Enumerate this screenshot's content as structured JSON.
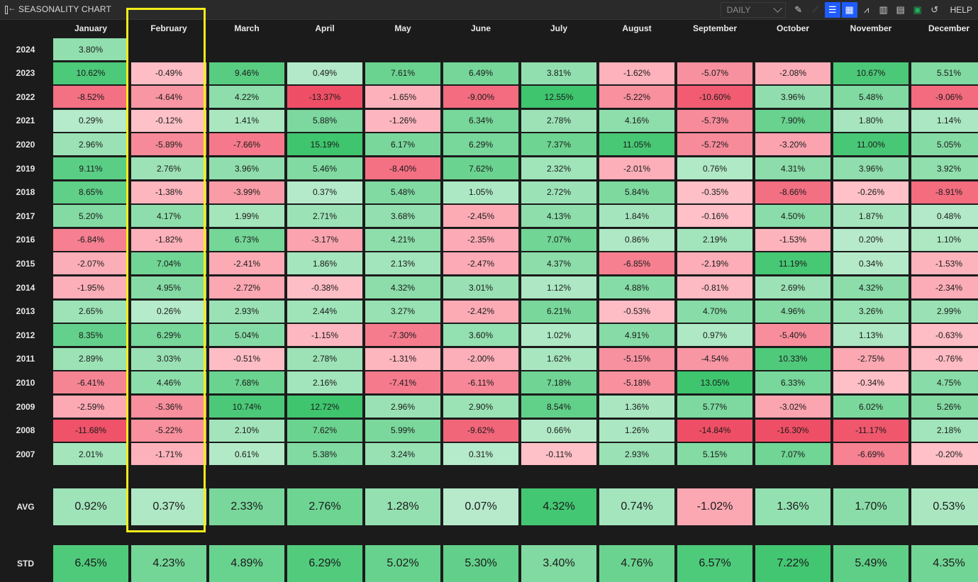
{
  "app": {
    "title": "SEASONALITY CHART",
    "interval": "DAILY",
    "help_label": "HELP"
  },
  "toolbar_icons": [
    "brush-icon",
    "line-chart-icon",
    "bar-chart-icon",
    "grid-icon",
    "area-chart-icon",
    "combo-chart-icon",
    "table-icon",
    "excel-icon",
    "refresh-icon"
  ],
  "months": [
    "January",
    "February",
    "March",
    "April",
    "May",
    "June",
    "July",
    "August",
    "September",
    "October",
    "November",
    "December"
  ],
  "rows": [
    {
      "year": "2024",
      "values": [
        "3.80%",
        "",
        "",
        "",
        "",
        "",
        "",
        "",
        "",
        "",
        "",
        ""
      ]
    },
    {
      "year": "2023",
      "values": [
        "10.62%",
        "-0.49%",
        "9.46%",
        "0.49%",
        "7.61%",
        "6.49%",
        "3.81%",
        "-1.62%",
        "-5.07%",
        "-2.08%",
        "10.67%",
        "5.51%"
      ]
    },
    {
      "year": "2022",
      "values": [
        "-8.52%",
        "-4.64%",
        "4.22%",
        "-13.37%",
        "-1.65%",
        "-9.00%",
        "12.55%",
        "-5.22%",
        "-10.60%",
        "3.96%",
        "5.48%",
        "-9.06%"
      ]
    },
    {
      "year": "2021",
      "values": [
        "0.29%",
        "-0.12%",
        "1.41%",
        "5.88%",
        "-1.26%",
        "6.34%",
        "2.78%",
        "4.16%",
        "-5.73%",
        "7.90%",
        "1.80%",
        "1.14%"
      ]
    },
    {
      "year": "2020",
      "values": [
        "2.96%",
        "-5.89%",
        "-7.66%",
        "15.19%",
        "6.17%",
        "6.29%",
        "7.37%",
        "11.05%",
        "-5.72%",
        "-3.20%",
        "11.00%",
        "5.05%"
      ]
    },
    {
      "year": "2019",
      "values": [
        "9.11%",
        "2.76%",
        "3.96%",
        "5.46%",
        "-8.40%",
        "7.62%",
        "2.32%",
        "-2.01%",
        "0.76%",
        "4.31%",
        "3.96%",
        "3.92%"
      ]
    },
    {
      "year": "2018",
      "values": [
        "8.65%",
        "-1.38%",
        "-3.99%",
        "0.37%",
        "5.48%",
        "1.05%",
        "2.72%",
        "5.84%",
        "-0.35%",
        "-8.66%",
        "-0.26%",
        "-8.91%"
      ]
    },
    {
      "year": "2017",
      "values": [
        "5.20%",
        "4.17%",
        "1.99%",
        "2.71%",
        "3.68%",
        "-2.45%",
        "4.13%",
        "1.84%",
        "-0.16%",
        "4.50%",
        "1.87%",
        "0.48%"
      ]
    },
    {
      "year": "2016",
      "values": [
        "-6.84%",
        "-1.82%",
        "6.73%",
        "-3.17%",
        "4.21%",
        "-2.35%",
        "7.07%",
        "0.86%",
        "2.19%",
        "-1.53%",
        "0.20%",
        "1.10%"
      ]
    },
    {
      "year": "2015",
      "values": [
        "-2.07%",
        "7.04%",
        "-2.41%",
        "1.86%",
        "2.13%",
        "-2.47%",
        "4.37%",
        "-6.85%",
        "-2.19%",
        "11.19%",
        "0.34%",
        "-1.53%"
      ]
    },
    {
      "year": "2014",
      "values": [
        "-1.95%",
        "4.95%",
        "-2.72%",
        "-0.38%",
        "4.32%",
        "3.01%",
        "1.12%",
        "4.88%",
        "-0.81%",
        "2.69%",
        "4.32%",
        "-2.34%"
      ]
    },
    {
      "year": "2013",
      "values": [
        "2.65%",
        "0.26%",
        "2.93%",
        "2.44%",
        "3.27%",
        "-2.42%",
        "6.21%",
        "-0.53%",
        "4.70%",
        "4.96%",
        "3.26%",
        "2.99%"
      ]
    },
    {
      "year": "2012",
      "values": [
        "8.35%",
        "6.29%",
        "5.04%",
        "-1.15%",
        "-7.30%",
        "3.60%",
        "1.02%",
        "4.91%",
        "0.97%",
        "-5.40%",
        "1.13%",
        "-0.63%"
      ]
    },
    {
      "year": "2011",
      "values": [
        "2.89%",
        "3.03%",
        "-0.51%",
        "2.78%",
        "-1.31%",
        "-2.00%",
        "1.62%",
        "-5.15%",
        "-4.54%",
        "10.33%",
        "-2.75%",
        "-0.76%"
      ]
    },
    {
      "year": "2010",
      "values": [
        "-6.41%",
        "4.46%",
        "7.68%",
        "2.16%",
        "-7.41%",
        "-6.11%",
        "7.18%",
        "-5.18%",
        "13.05%",
        "6.33%",
        "-0.34%",
        "4.75%"
      ]
    },
    {
      "year": "2009",
      "values": [
        "-2.59%",
        "-5.36%",
        "10.74%",
        "12.72%",
        "2.96%",
        "2.90%",
        "8.54%",
        "1.36%",
        "5.77%",
        "-3.02%",
        "6.02%",
        "5.26%"
      ]
    },
    {
      "year": "2008",
      "values": [
        "-11.68%",
        "-5.22%",
        "2.10%",
        "7.62%",
        "5.99%",
        "-9.62%",
        "0.66%",
        "1.26%",
        "-14.84%",
        "-16.30%",
        "-11.17%",
        "2.18%"
      ]
    },
    {
      "year": "2007",
      "values": [
        "2.01%",
        "-1.71%",
        "0.61%",
        "5.38%",
        "3.24%",
        "0.31%",
        "-0.11%",
        "2.93%",
        "5.15%",
        "7.07%",
        "-6.69%",
        "-0.20%"
      ]
    }
  ],
  "avg": {
    "label": "AVG",
    "values": [
      "0.92%",
      "0.37%",
      "2.33%",
      "2.76%",
      "1.28%",
      "0.07%",
      "4.32%",
      "0.74%",
      "-1.02%",
      "1.36%",
      "1.70%",
      "0.53%"
    ]
  },
  "std": {
    "label": "STD",
    "values": [
      "6.45%",
      "4.23%",
      "4.89%",
      "6.29%",
      "5.02%",
      "5.30%",
      "3.40%",
      "4.76%",
      "6.57%",
      "7.22%",
      "5.49%",
      "4.35%"
    ]
  },
  "highlighted_month": "February",
  "colors": {
    "highlight": "#f7ec1b",
    "positive_light": "#b8ebcc",
    "positive_dark": "#3ec56e",
    "negative_light": "#ffc2c9",
    "negative_dark": "#ef4f66"
  }
}
